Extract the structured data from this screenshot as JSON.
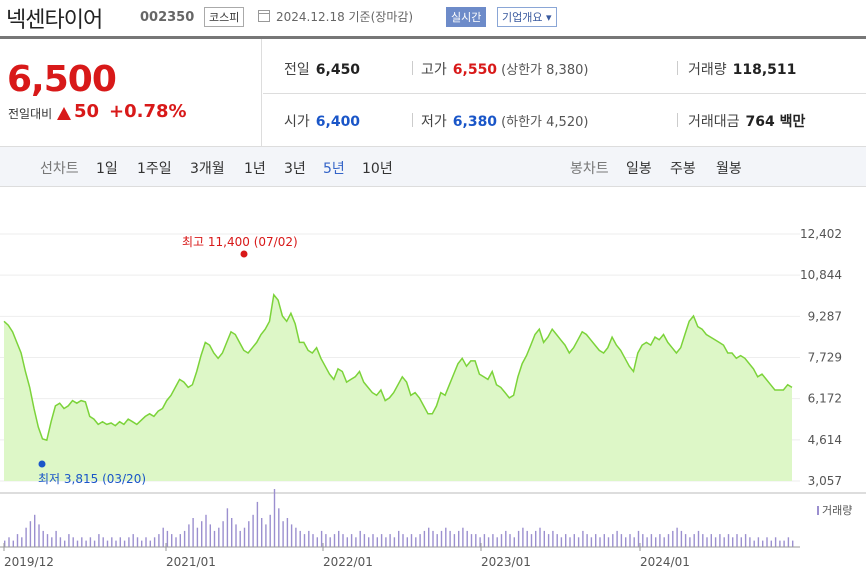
{
  "header": {
    "stock_name": "넥센타이어",
    "stock_code": "002350",
    "market": "코스피",
    "basis": "2024.12.18 기준(장마감)",
    "realtime_button": "실시간",
    "company_info_button": "기업개요 ▾"
  },
  "quote": {
    "price": "6,500",
    "change_label": "전일대비",
    "change": "50",
    "change_pct": "+0.78%",
    "prev_close": {
      "label": "전일",
      "value": "6,450"
    },
    "high": {
      "label": "고가",
      "value": "6,550",
      "sub": "(상한가 8,380)"
    },
    "volume": {
      "label": "거래량",
      "value": "118,511"
    },
    "open": {
      "label": "시가",
      "value": "6,400"
    },
    "low": {
      "label": "저가",
      "value": "6,380",
      "sub": "(하한가 4,520)"
    },
    "amount": {
      "label": "거래대금",
      "value": "764 백만"
    }
  },
  "periods": {
    "line_label": "선차트",
    "line_options": [
      "1일",
      "1주일",
      "3개월",
      "1년",
      "3년",
      "5년",
      "10년"
    ],
    "active": "5년",
    "candle_label": "봉차트",
    "candle_options": [
      "일봉",
      "주봉",
      "월봉"
    ]
  },
  "colors": {
    "up": "#d81919",
    "down": "#1a56c8",
    "line": "#7cd33a",
    "fill": "#ddf7c7",
    "volume": "#9b8fcf"
  },
  "chart_data": {
    "type": "area",
    "x_start": "2019/12",
    "x_end": "2024/12",
    "y_ticks": [
      12402,
      10844,
      9287,
      7729,
      6172,
      4614,
      3057
    ],
    "ylim": [
      3057,
      12402
    ],
    "x_ticks": [
      "2019/12",
      "2021/01",
      "2022/01",
      "2023/01",
      "2024/01"
    ],
    "max_label": "최고 11,400 (07/02)",
    "min_label": "최저 3,815 (03/20)",
    "volume_label": "거래량",
    "series": [
      {
        "values": [
          9100,
          8950,
          8700,
          8300,
          7900,
          7200,
          6600,
          5800,
          5100,
          4650,
          4600,
          5300,
          5900,
          6000,
          5800,
          5900,
          6100,
          6000,
          6100,
          6050,
          5500,
          5400,
          5200,
          5300,
          5200,
          5250,
          5150,
          5300,
          5200,
          5400,
          5300,
          5200,
          5350,
          5500,
          5600,
          5500,
          5700,
          5800,
          6100,
          6300,
          6600,
          6900,
          6800,
          6600,
          6700,
          7200,
          7800,
          8300,
          8200,
          7900,
          7700,
          7900,
          8300,
          8700,
          8600,
          8300,
          8000,
          7900,
          8100,
          8300,
          8600,
          8800,
          9100,
          10100,
          9900,
          9300,
          9100,
          9400,
          9000,
          8300,
          8300,
          8000,
          7900,
          8100,
          7700,
          7400,
          7100,
          6900,
          7300,
          7200,
          6800,
          6900,
          7000,
          7200,
          6800,
          6600,
          6400,
          6300,
          6500,
          6100,
          6200,
          6400,
          6700,
          7000,
          6800,
          6300,
          6400,
          6200,
          5900,
          5600,
          5600,
          5900,
          6400,
          6300,
          6700,
          7100,
          7500,
          7700,
          7400,
          7600,
          7600,
          7100,
          7000,
          6900,
          7200,
          6700,
          6600,
          6400,
          6200,
          6300,
          7000,
          7500,
          7800,
          8200,
          8600,
          8800,
          8300,
          8500,
          8800,
          8600,
          8400,
          8200,
          7900,
          8100,
          8400,
          8700,
          8600,
          8400,
          8200,
          8000,
          7900,
          8100,
          8500,
          8200,
          8000,
          7700,
          7400,
          7200,
          7900,
          8200,
          8300,
          8200,
          8500,
          8400,
          8600,
          8300,
          8100,
          7900,
          8100,
          8600,
          9100,
          9300,
          8900,
          8800,
          8600,
          8500,
          8400,
          8300,
          8200,
          7900,
          7900,
          7700,
          7800,
          7700,
          7500,
          7300,
          7000,
          7100,
          6900,
          6700,
          6500,
          6500,
          6500,
          6700,
          6600
        ]
      },
      {
        "name": "거래량",
        "values": [
          2,
          3,
          2,
          4,
          3,
          6,
          8,
          10,
          7,
          5,
          4,
          3,
          5,
          3,
          2,
          4,
          3,
          2,
          3,
          2,
          3,
          2,
          4,
          3,
          2,
          3,
          2,
          3,
          2,
          3,
          4,
          3,
          2,
          3,
          2,
          3,
          4,
          6,
          5,
          4,
          3,
          4,
          5,
          7,
          9,
          6,
          8,
          10,
          7,
          5,
          6,
          8,
          12,
          9,
          7,
          5,
          6,
          8,
          10,
          14,
          9,
          7,
          10,
          18,
          12,
          8,
          9,
          7,
          6,
          5,
          4,
          5,
          4,
          3,
          5,
          4,
          3,
          4,
          5,
          4,
          3,
          4,
          3,
          5,
          4,
          3,
          4,
          3,
          4,
          3,
          4,
          3,
          5,
          4,
          3,
          4,
          3,
          4,
          5,
          6,
          5,
          4,
          5,
          6,
          5,
          4,
          5,
          6,
          5,
          4,
          4,
          3,
          4,
          3,
          4,
          3,
          4,
          5,
          4,
          3,
          5,
          6,
          5,
          4,
          5,
          6,
          5,
          4,
          5,
          4,
          3,
          4,
          3,
          4,
          3,
          5,
          4,
          3,
          4,
          3,
          4,
          3,
          4,
          5,
          4,
          3,
          4,
          3,
          5,
          4,
          3,
          4,
          3,
          4,
          3,
          4,
          5,
          6,
          5,
          4,
          3,
          4,
          5,
          4,
          3,
          4,
          3,
          4,
          3,
          4,
          3,
          4,
          3,
          4,
          3,
          2,
          3,
          2,
          3,
          2,
          3,
          2,
          2,
          3,
          2
        ]
      }
    ]
  }
}
